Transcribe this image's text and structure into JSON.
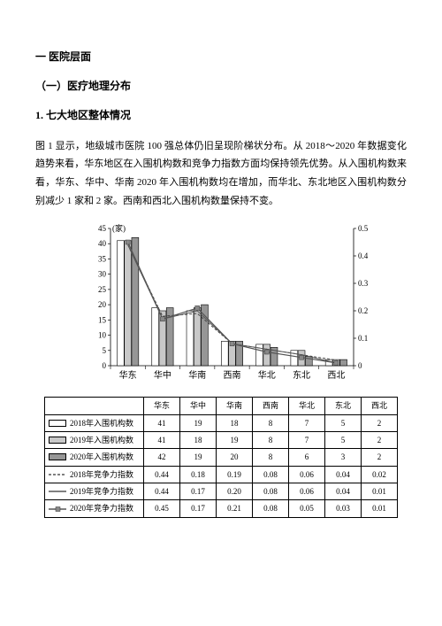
{
  "headings": {
    "h1": "一 医院层面",
    "h2": "（一）医疗地理分布",
    "h3": "1. 七大地区整体情况"
  },
  "paragraph": "图 1 显示，地级城市医院 100 强总体仍旧呈现阶梯状分布。从 2018～2020 年数据变化趋势来看，华东地区在入围机构数和竞争力指数方面均保持领先优势。从入围机构数来看，华东、华中、华南 2020 年入围机构数均在增加，而华北、东北地区入围机构数分别减少 1 家和 2 家。西南和西北入围机构数量保持不变。",
  "chart": {
    "categories": [
      "华东",
      "华中",
      "华南",
      "西南",
      "华北",
      "东北",
      "西北"
    ],
    "left_axis": {
      "min": 0,
      "max": 45,
      "step": 5,
      "label": "(家)"
    },
    "right_axis": {
      "min": 0,
      "max": 0.5,
      "step": 0.1
    },
    "series": {
      "bar2018": {
        "label": "2018年入围机构数",
        "color": "#ffffff",
        "values": [
          41,
          19,
          18,
          8,
          7,
          5,
          2
        ]
      },
      "bar2019": {
        "label": "2019年入围机构数",
        "color": "#c8c8c8",
        "values": [
          41,
          18,
          19,
          8,
          7,
          5,
          2
        ]
      },
      "bar2020": {
        "label": "2020年入围机构数",
        "color": "#969696",
        "values": [
          42,
          19,
          20,
          8,
          6,
          3,
          2
        ]
      },
      "line2018": {
        "label": "2018年竞争力指数",
        "values": [
          0.44,
          0.18,
          0.19,
          0.08,
          0.06,
          0.04,
          0.02
        ],
        "marker": "dashed"
      },
      "line2019": {
        "label": "2019年竞争力指数",
        "values": [
          0.44,
          0.17,
          0.2,
          0.08,
          0.06,
          0.04,
          0.01
        ],
        "marker": "line"
      },
      "line2020": {
        "label": "2020年竞争力指数",
        "values": [
          0.45,
          0.17,
          0.21,
          0.08,
          0.05,
          0.03,
          0.01
        ],
        "marker": "square"
      }
    },
    "colors": {
      "axis": "#000000",
      "grid": "#e0e0e0",
      "line": "#6a6a6a"
    }
  }
}
